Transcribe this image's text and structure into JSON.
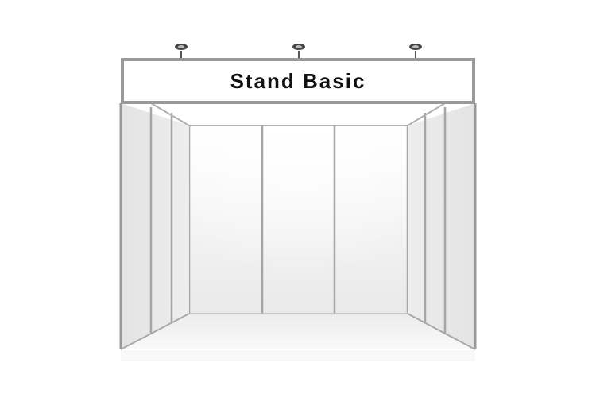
{
  "booth": {
    "fascia_text": "Stand Basic"
  },
  "colors": {
    "frame": "#9a9a9a",
    "panel_back": "#f2f2f2",
    "panel_side": "#e2e2e2",
    "floor": "#f7f7f7",
    "fascia": "#ffffff",
    "text": "#111111"
  },
  "icons": {
    "spotlight": "spotlight-icon"
  }
}
